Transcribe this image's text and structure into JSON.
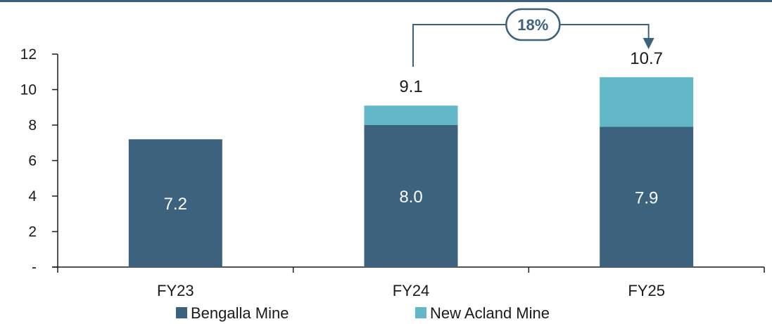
{
  "chart_data": {
    "type": "bar",
    "stacked": true,
    "categories": [
      "FY23",
      "FY24",
      "FY25"
    ],
    "series": [
      {
        "name": "Bengalla Mine",
        "values": [
          7.2,
          8.0,
          7.9
        ],
        "color": "#3d627e"
      },
      {
        "name": "New Acland Mine",
        "values": [
          0,
          1.1,
          2.8
        ],
        "color": "#63b8c8"
      }
    ],
    "segment_labels": [
      "7.2",
      "8.0",
      "7.9"
    ],
    "totals": [
      "",
      "9.1",
      "10.7"
    ],
    "y_ticks": [
      "-",
      "2",
      "4",
      "6",
      "8",
      "10",
      "12"
    ],
    "ylim": [
      0,
      12
    ],
    "grid": false,
    "legend_position": "bottom",
    "annotation": {
      "text": "18%",
      "from_category": "FY24",
      "to_category": "FY25",
      "color": "#3d627e"
    },
    "title": "",
    "xlabel": "",
    "ylabel": ""
  },
  "colors": {
    "top_rule": "#3d627e",
    "axis": "#1a1a1a"
  }
}
